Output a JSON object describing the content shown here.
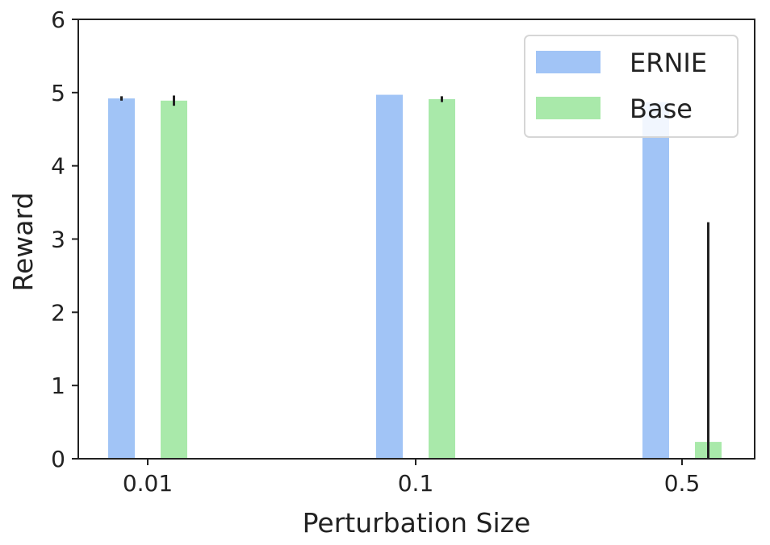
{
  "chart_data": {
    "type": "bar",
    "categories": [
      "0.01",
      "0.1",
      "0.5"
    ],
    "series": [
      {
        "name": "ERNIE",
        "values": [
          4.92,
          4.97,
          4.87
        ],
        "errors": [
          0.03,
          0.0,
          0.0
        ],
        "color": "#a1c4f6"
      },
      {
        "name": "Base",
        "values": [
          4.89,
          4.91,
          0.23
        ],
        "errors": [
          0.07,
          0.04,
          3.0
        ],
        "color": "#a9e9aa"
      }
    ],
    "xlabel": "Perturbation Size",
    "ylabel": "Reward",
    "ylim": [
      0,
      6
    ],
    "yticks": [
      "0",
      "1",
      "2",
      "3",
      "4",
      "5",
      "6"
    ],
    "grid": false,
    "legend_position": "upper-right"
  }
}
